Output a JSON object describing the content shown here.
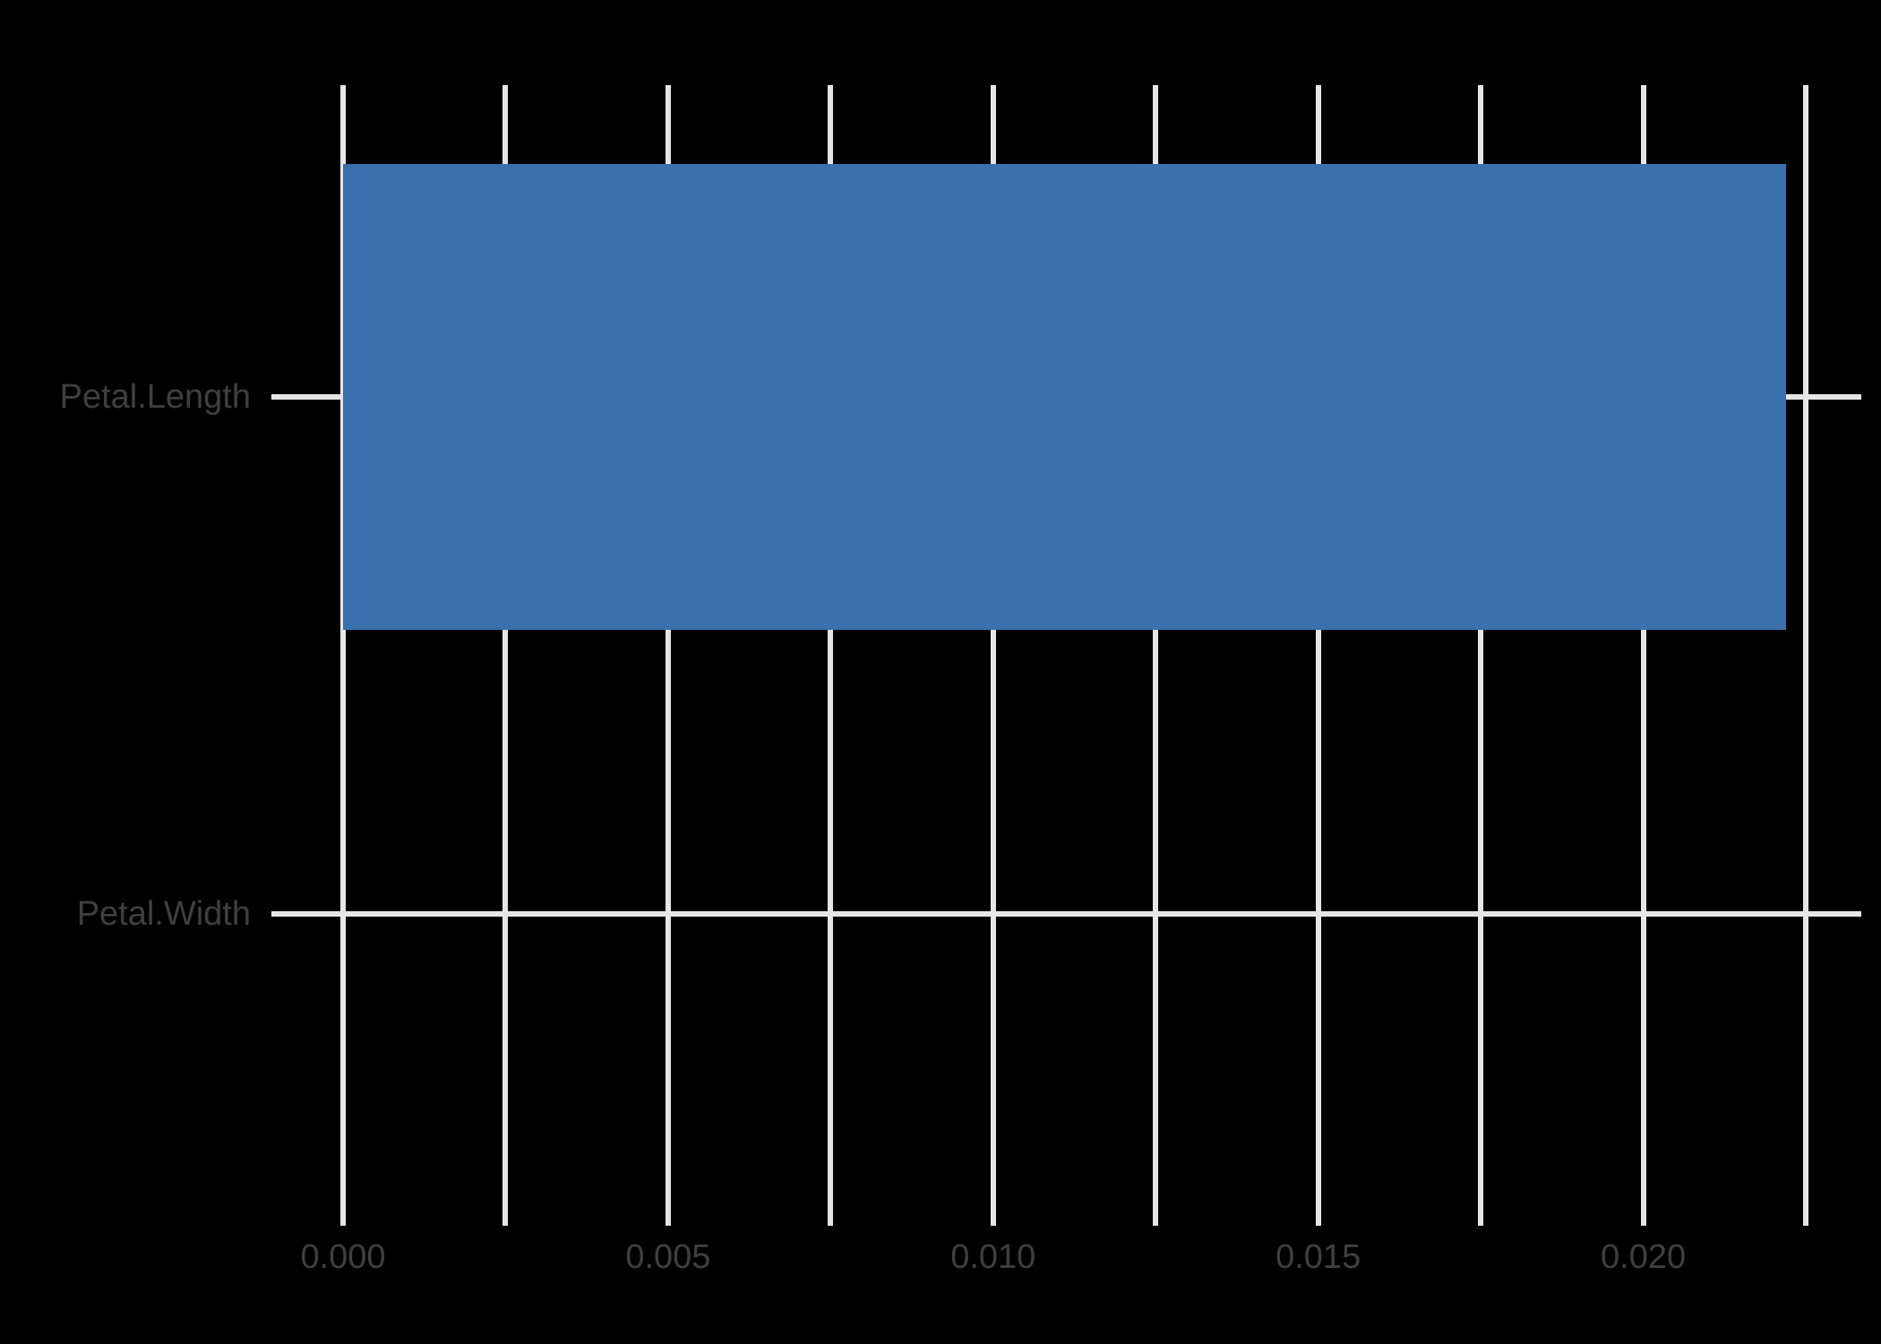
{
  "chart": {
    "background_color": "#000000",
    "grid_color": "#e6e6e6",
    "text_color": "#3f3f3f",
    "bar_color": "#3a70ad"
  },
  "chart_data": {
    "type": "bar",
    "orientation": "horizontal",
    "title": "",
    "xlabel": "",
    "ylabel": "",
    "categories": [
      "Petal.Length",
      "Petal.Width"
    ],
    "values": [
      0.0222,
      0
    ],
    "xlim": [
      0,
      0.0225
    ],
    "x_major_ticks": [
      {
        "value": 0.0,
        "label": "0.000"
      },
      {
        "value": 0.005,
        "label": "0.005"
      },
      {
        "value": 0.01,
        "label": "0.010"
      },
      {
        "value": 0.015,
        "label": "0.015"
      },
      {
        "value": 0.02,
        "label": "0.020"
      }
    ],
    "x_gridline_values": [
      0,
      0.0025,
      0.005,
      0.0075,
      0.01,
      0.0125,
      0.015,
      0.0175,
      0.02,
      0.0225
    ],
    "grid": "on",
    "legend": "none"
  }
}
